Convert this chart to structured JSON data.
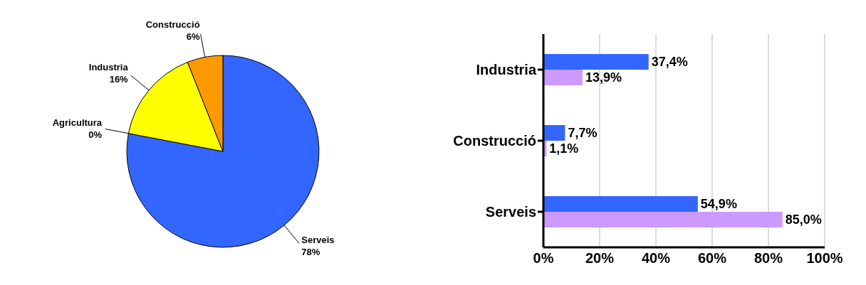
{
  "chart_data": [
    {
      "type": "pie",
      "categories": [
        "Serveis",
        "Agricultura",
        "Industria",
        "Construcció"
      ],
      "values": [
        78,
        0,
        16,
        6
      ],
      "colors": [
        "#3366ff",
        "#999999",
        "#ffff00",
        "#ff9900"
      ],
      "value_labels": [
        "78%",
        "0%",
        "16%",
        "6%"
      ]
    },
    {
      "type": "bar",
      "orientation": "horizontal",
      "categories": [
        "Industria",
        "Construcció",
        "Serveis"
      ],
      "series": [
        {
          "color": "#3366ff",
          "values": [
            37.4,
            7.7,
            54.9
          ],
          "value_labels": [
            "37,4%",
            "7,7%",
            "54,9%"
          ]
        },
        {
          "color": "#cc99ff",
          "values": [
            13.9,
            1.1,
            85.0
          ],
          "value_labels": [
            "13,9%",
            "1,1%",
            "85,0%"
          ]
        }
      ],
      "xlim": [
        0,
        100
      ],
      "xticks": [
        {
          "value": 0,
          "label": "0%"
        },
        {
          "value": 20,
          "label": "20%"
        },
        {
          "value": 40,
          "label": "40%"
        },
        {
          "value": 60,
          "label": "60%"
        },
        {
          "value": 80,
          "label": "80%"
        },
        {
          "value": 100,
          "label": "100%"
        }
      ],
      "grid": "x"
    }
  ]
}
